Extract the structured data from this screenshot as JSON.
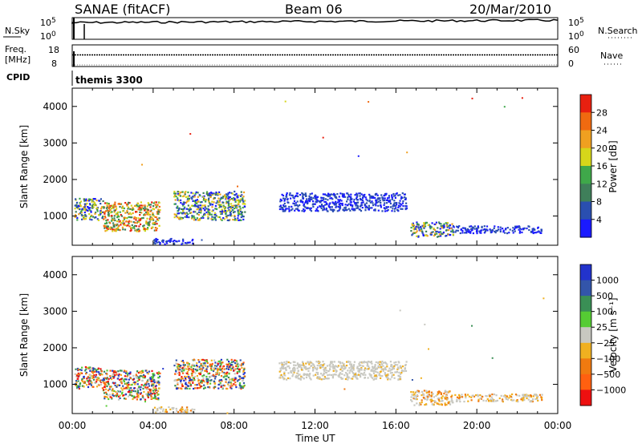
{
  "header": {
    "station": "SANAE (fitACF)",
    "beam": "Beam 06",
    "date": "20/Mar/2010"
  },
  "status_panel": {
    "nsky_label": "N.Sky",
    "nsearch_label": "N.Search",
    "freq_label_1": "Freq.",
    "freq_label_2": "[MHz]",
    "nave_label": "Nave",
    "cpid_label": "CPID",
    "cpid_text": "themis 3300",
    "noise_ticks_left": [
      "10^5",
      "10^0"
    ],
    "noise_ticks_right": [
      "10^5",
      "10^0"
    ],
    "freq_ticks": [
      "18",
      "8"
    ],
    "nave_ticks": [
      "60",
      "0"
    ]
  },
  "colors": {
    "power_scale": [
      "#1a1aff",
      "#2a4fb0",
      "#3f7f5a",
      "#3fa84a",
      "#d6d61a",
      "#f0a020",
      "#f06a10",
      "#e82010"
    ],
    "velocity_scale": [
      "#2233cc",
      "#3355aa",
      "#3a8f55",
      "#55cc33",
      "#c8c8c0",
      "#f0b020",
      "#f07a10",
      "#ff6010",
      "#ee1010"
    ]
  },
  "chart_data": [
    {
      "type": "heatmap",
      "name": "power",
      "xlabel": "",
      "ylabel": "Slant Range [km]",
      "xlim": [
        "00:00",
        "24:00"
      ],
      "ylim": [
        200,
        4500
      ],
      "yticks": [
        "1000",
        "2000",
        "3000",
        "4000"
      ],
      "colorbar": {
        "label": "Power [dB]",
        "ticks": [
          "28",
          "24",
          "20",
          "16",
          "12",
          "8",
          "4"
        ]
      },
      "regions": [
        {
          "t0": 0.1,
          "t1": 1.5,
          "r0": 900,
          "r1": 1500,
          "level": "mixed"
        },
        {
          "t0": 1.5,
          "t1": 4.3,
          "r0": 600,
          "r1": 1400,
          "level": "high"
        },
        {
          "t0": 4.0,
          "t1": 6.0,
          "r0": 250,
          "r1": 400,
          "level": "low"
        },
        {
          "t0": 5.0,
          "t1": 8.5,
          "r0": 900,
          "r1": 1700,
          "level": "mixed"
        },
        {
          "t0": 10.2,
          "t1": 16.5,
          "r0": 1150,
          "r1": 1650,
          "level": "low"
        },
        {
          "t0": 16.7,
          "t1": 18.8,
          "r0": 450,
          "r1": 850,
          "level": "mixed"
        },
        {
          "t0": 18.8,
          "t1": 23.2,
          "r0": 550,
          "r1": 750,
          "level": "low"
        }
      ]
    },
    {
      "type": "heatmap",
      "name": "velocity",
      "xlabel": "Time UT",
      "ylabel": "Slant Range [km]",
      "xlim": [
        "00:00",
        "24:00"
      ],
      "ylim": [
        200,
        4500
      ],
      "xticks": [
        "00:00",
        "04:00",
        "08:00",
        "12:00",
        "16:00",
        "20:00",
        "00:00"
      ],
      "yticks": [
        "1000",
        "2000",
        "3000",
        "4000"
      ],
      "colorbar": {
        "label": "Velocity [m s⁻¹]",
        "ticks": [
          "1000",
          "500",
          "100",
          "25",
          "−25",
          "−100",
          "−500",
          "−1000"
        ]
      },
      "regions": [
        {
          "t0": 0.1,
          "t1": 1.5,
          "r0": 900,
          "r1": 1500,
          "level": "mixed"
        },
        {
          "t0": 1.5,
          "t1": 4.3,
          "r0": 600,
          "r1": 1400,
          "level": "mixed"
        },
        {
          "t0": 4.0,
          "t1": 6.0,
          "r0": 250,
          "r1": 400,
          "level": "negative"
        },
        {
          "t0": 5.0,
          "t1": 8.5,
          "r0": 900,
          "r1": 1700,
          "level": "mixed"
        },
        {
          "t0": 10.2,
          "t1": 16.5,
          "r0": 1150,
          "r1": 1650,
          "level": "near-zero"
        },
        {
          "t0": 16.7,
          "t1": 18.8,
          "r0": 450,
          "r1": 850,
          "level": "negative"
        },
        {
          "t0": 18.8,
          "t1": 23.2,
          "r0": 550,
          "r1": 750,
          "level": "negative"
        }
      ]
    }
  ]
}
